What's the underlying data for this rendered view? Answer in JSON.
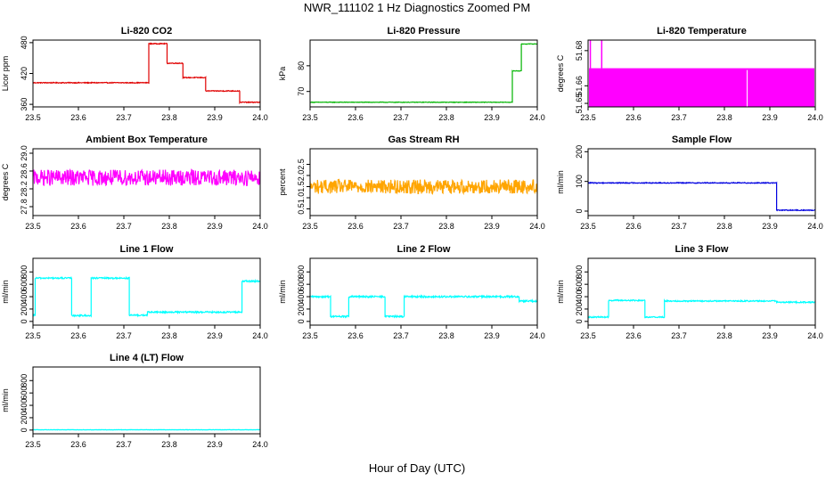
{
  "page": {
    "title": "NWR_111102  1 Hz Diagnostics Zoomed PM",
    "xlabel": "Hour of Day (UTC)"
  },
  "chart_data": [
    {
      "type": "line",
      "title": "Li-820 CO2",
      "ylabel": "Licor ppm",
      "color": "#e00000",
      "xlim": [
        23.5,
        24.0
      ],
      "xticks": [
        "23.5",
        "23.6",
        "23.7",
        "23.8",
        "23.9",
        "24.0"
      ],
      "ylim": [
        355,
        485
      ],
      "yticks": [
        360,
        420,
        480
      ],
      "yticklabels": [
        "360",
        "420",
        "480"
      ],
      "noise": 0.8,
      "segments": [
        [
          23.5,
          23.755,
          402
        ],
        [
          23.755,
          23.795,
          478
        ],
        [
          23.795,
          23.83,
          440
        ],
        [
          23.83,
          23.88,
          412
        ],
        [
          23.88,
          23.955,
          386
        ],
        [
          23.955,
          24.0,
          364
        ]
      ]
    },
    {
      "type": "line",
      "title": "Li-820 Pressure",
      "ylabel": "kPa",
      "color": "#00b400",
      "xlim": [
        23.5,
        24.0
      ],
      "xticks": [
        "23.5",
        "23.6",
        "23.7",
        "23.8",
        "23.9",
        "24.0"
      ],
      "ylim": [
        64,
        90
      ],
      "yticks": [
        70,
        80
      ],
      "yticklabels": [
        "70",
        "80"
      ],
      "noise": 0.1,
      "segments": [
        [
          23.5,
          23.945,
          65.8
        ],
        [
          23.945,
          23.965,
          78
        ],
        [
          23.965,
          24.0,
          88.5
        ]
      ]
    },
    {
      "type": "band",
      "title": "Li-820 Temperature",
      "ylabel": "degrees C",
      "color": "#ff00ff",
      "xlim": [
        23.5,
        24.0
      ],
      "xticks": [
        "23.5",
        "23.6",
        "23.7",
        "23.8",
        "23.9",
        "24.0"
      ],
      "ylim": [
        51.648,
        51.686
      ],
      "yticks": [
        51.65,
        51.66,
        51.68
      ],
      "yticklabels": [
        "51.65",
        "51.66",
        "51.68"
      ],
      "band_low": 51.648,
      "band_high": 51.67,
      "spikes": [
        23.505,
        23.53
      ],
      "spike_top": 51.686,
      "gap_x": 23.85
    },
    {
      "type": "line",
      "title": "Ambient Box Temperature",
      "ylabel": "degrees C",
      "color": "#ff00ff",
      "xlim": [
        23.5,
        24.0
      ],
      "xticks": [
        "23.5",
        "23.6",
        "23.7",
        "23.8",
        "23.9",
        "24.0"
      ],
      "ylim": [
        27.6,
        29.1
      ],
      "yticks": [
        27.8,
        28.2,
        28.6,
        29.0
      ],
      "yticklabels": [
        "27.8",
        "28.2",
        "28.6",
        "29.0"
      ],
      "noise": 0.18,
      "segments": [
        [
          23.5,
          24.0,
          28.45
        ]
      ]
    },
    {
      "type": "line",
      "title": "Gas Stream RH",
      "ylabel": "percent",
      "color": "#ffa500",
      "xlim": [
        23.5,
        24.0
      ],
      "xticks": [
        "23.5",
        "23.6",
        "23.7",
        "23.8",
        "23.9",
        "24.0"
      ],
      "ylim": [
        0.2,
        3.2
      ],
      "yticks": [
        0.5,
        1.0,
        1.5,
        2.0,
        2.5
      ],
      "yticklabels": [
        "0.5",
        "1.0",
        "1.5",
        "2.0",
        "2.5"
      ],
      "noise": 0.32,
      "segments": [
        [
          23.5,
          24.0,
          1.5
        ]
      ]
    },
    {
      "type": "line",
      "title": "Sample Flow",
      "ylabel": "ml/min",
      "color": "#0000e0",
      "xlim": [
        23.5,
        24.0
      ],
      "xticks": [
        "23.5",
        "23.6",
        "23.7",
        "23.8",
        "23.9",
        "24.0"
      ],
      "ylim": [
        -15,
        210
      ],
      "yticks": [
        0,
        100,
        200
      ],
      "yticklabels": [
        "0",
        "100",
        "200"
      ],
      "noise": 1.5,
      "segments": [
        [
          23.5,
          23.915,
          95
        ],
        [
          23.915,
          24.0,
          3
        ]
      ]
    },
    {
      "type": "line",
      "title": "Line 1 Flow",
      "ylabel": "ml/min",
      "color": "#00ffff",
      "xlim": [
        23.5,
        24.0
      ],
      "xticks": [
        "23.5",
        "23.6",
        "23.7",
        "23.8",
        "23.9",
        "24.0"
      ],
      "ylim": [
        -60,
        1020
      ],
      "yticks": [
        0,
        200,
        400,
        600,
        800
      ],
      "yticklabels": [
        "0",
        "200",
        "400",
        "600",
        "800"
      ],
      "noise": 12,
      "segments": [
        [
          23.5,
          23.505,
          100
        ],
        [
          23.505,
          23.585,
          700
        ],
        [
          23.585,
          23.628,
          95
        ],
        [
          23.628,
          23.712,
          700
        ],
        [
          23.712,
          23.752,
          100
        ],
        [
          23.752,
          23.96,
          150
        ],
        [
          23.96,
          24.0,
          650
        ]
      ]
    },
    {
      "type": "line",
      "title": "Line 2 Flow",
      "ylabel": "ml/min",
      "color": "#00ffff",
      "xlim": [
        23.5,
        24.0
      ],
      "xticks": [
        "23.5",
        "23.6",
        "23.7",
        "23.8",
        "23.9",
        "24.0"
      ],
      "ylim": [
        -60,
        1020
      ],
      "yticks": [
        0,
        200,
        400,
        600,
        800
      ],
      "yticklabels": [
        "0",
        "200",
        "400",
        "600",
        "800"
      ],
      "noise": 14,
      "segments": [
        [
          23.5,
          23.545,
          400
        ],
        [
          23.545,
          23.585,
          80
        ],
        [
          23.585,
          23.665,
          400
        ],
        [
          23.665,
          23.707,
          80
        ],
        [
          23.707,
          23.96,
          400
        ],
        [
          23.96,
          24.0,
          330
        ]
      ]
    },
    {
      "type": "line",
      "title": "Line 3 Flow",
      "ylabel": "ml/min",
      "color": "#00ffff",
      "xlim": [
        23.5,
        24.0
      ],
      "xticks": [
        "23.5",
        "23.6",
        "23.7",
        "23.8",
        "23.9",
        "24.0"
      ],
      "ylim": [
        -60,
        1020
      ],
      "yticks": [
        0,
        200,
        400,
        600,
        800
      ],
      "yticklabels": [
        "0",
        "200",
        "400",
        "600",
        "800"
      ],
      "noise": 10,
      "segments": [
        [
          23.5,
          23.545,
          70
        ],
        [
          23.545,
          23.625,
          340
        ],
        [
          23.625,
          23.668,
          70
        ],
        [
          23.668,
          23.915,
          330
        ],
        [
          23.915,
          24.0,
          310
        ]
      ]
    },
    {
      "type": "line",
      "title": "Line 4 (LT) Flow",
      "ylabel": "ml/min",
      "color": "#00ffff",
      "xlim": [
        23.5,
        24.0
      ],
      "xticks": [
        "23.5",
        "23.6",
        "23.7",
        "23.8",
        "23.9",
        "24.0"
      ],
      "ylim": [
        -60,
        1020
      ],
      "yticks": [
        0,
        200,
        400,
        600,
        800
      ],
      "yticklabels": [
        "0",
        "200",
        "400",
        "600",
        "800"
      ],
      "noise": 3,
      "segments": [
        [
          23.5,
          24.0,
          5
        ]
      ]
    }
  ]
}
